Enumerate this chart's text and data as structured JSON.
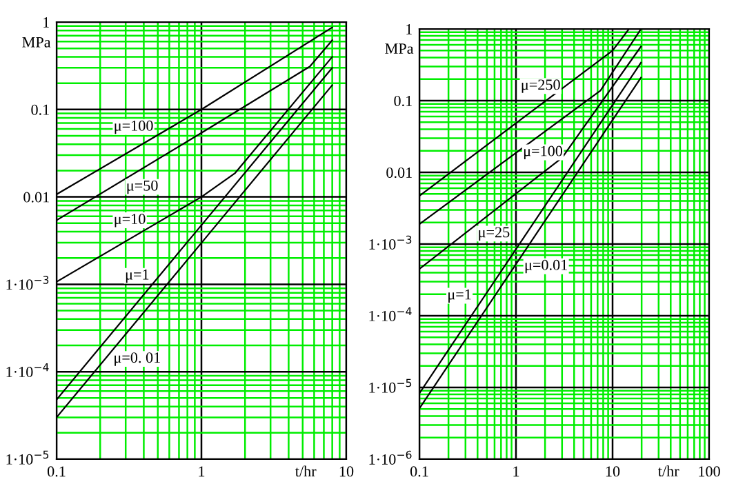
{
  "chart_data": [
    {
      "type": "line",
      "ylabel": "MPa",
      "xlabel": "t/hr",
      "log": "xy",
      "grid": true,
      "xlim": [
        0.1,
        10
      ],
      "ylim": [
        1e-05,
        1
      ],
      "xticks": [
        0.1,
        {
          "value": 0.2,
          "label": null
        },
        {
          "value": 0.3,
          "label": null
        },
        {
          "value": 0.4,
          "label": null
        },
        {
          "value": 0.5,
          "label": null
        },
        {
          "value": 0.6,
          "label": null
        },
        {
          "value": 0.7,
          "label": null
        },
        {
          "value": 0.8,
          "label": null
        },
        {
          "value": 0.9,
          "label": null
        },
        1,
        {
          "value": 2,
          "label": null
        },
        {
          "value": 3,
          "label": null
        },
        {
          "value": 4,
          "label": null
        },
        {
          "value": 5,
          "label": null
        },
        {
          "value": 6,
          "label": null
        },
        {
          "value": 7,
          "label": null
        },
        {
          "value": 8,
          "label": null
        },
        {
          "value": 9,
          "label": null
        },
        10
      ],
      "yticks": [
        {
          "value": 1e-05,
          "label": "1·10$^{−5}$"
        },
        {
          "value": 2e-05,
          "label": null
        },
        {
          "value": 3e-05,
          "label": null
        },
        {
          "value": 4e-05,
          "label": null
        },
        {
          "value": 5e-05,
          "label": null
        },
        {
          "value": 6e-05,
          "label": null
        },
        {
          "value": 7e-05,
          "label": null
        },
        {
          "value": 8e-05,
          "label": null
        },
        {
          "value": 9e-05,
          "label": null
        },
        {
          "value": 0.0001,
          "label": "1·10$^{−4}$"
        },
        {
          "value": 0.0002,
          "label": null
        },
        {
          "value": 0.0003,
          "label": null
        },
        {
          "value": 0.0004,
          "label": null
        },
        {
          "value": 0.0005,
          "label": null
        },
        {
          "value": 0.0006,
          "label": null
        },
        {
          "value": 0.0007,
          "label": null
        },
        {
          "value": 0.0008,
          "label": null
        },
        {
          "value": 0.0009,
          "label": null
        },
        {
          "value": 0.001,
          "label": "1·10$^{−3}$"
        },
        {
          "value": 0.002,
          "label": null
        },
        {
          "value": 0.003,
          "label": null
        },
        {
          "value": 0.004,
          "label": null
        },
        {
          "value": 0.005,
          "label": null
        },
        {
          "value": 0.006,
          "label": null
        },
        {
          "value": 0.007,
          "label": null
        },
        {
          "value": 0.008,
          "label": null
        },
        {
          "value": 0.009,
          "label": null
        },
        {
          "value": 0.01,
          "label": "0.01"
        },
        {
          "value": 0.02,
          "label": null
        },
        {
          "value": 0.03,
          "label": null
        },
        {
          "value": 0.04,
          "label": null
        },
        {
          "value": 0.05,
          "label": null
        },
        {
          "value": 0.06,
          "label": null
        },
        {
          "value": 0.07,
          "label": null
        },
        {
          "value": 0.08,
          "label": null
        },
        {
          "value": 0.09,
          "label": null
        },
        {
          "value": 0.1,
          "label": "0.1"
        },
        {
          "value": 0.2,
          "label": null
        },
        {
          "value": 0.3,
          "label": null
        },
        {
          "value": 0.4,
          "label": null
        },
        {
          "value": 0.5,
          "label": null
        },
        {
          "value": 0.6,
          "label": null
        },
        {
          "value": 0.7,
          "label": null
        },
        {
          "value": 0.8,
          "label": null
        },
        {
          "value": 0.9,
          "label": null
        },
        {
          "value": 1,
          "label": "1"
        }
      ],
      "series": [
        {
          "color": "#000000",
          "x": [
            0.1,
            1,
            8
          ],
          "values": [
            0.0107,
            0.1,
            0.87
          ]
        },
        {
          "color": "#000000",
          "x": [
            0.1,
            1,
            5.6,
            8
          ],
          "values": [
            0.0054,
            0.054,
            0.31,
            0.62
          ]
        },
        {
          "color": "#000000",
          "x": [
            0.1,
            1,
            1.7,
            8
          ],
          "values": [
            0.00107,
            0.01,
            0.0186,
            0.4
          ]
        },
        {
          "color": "#000000",
          "x": [
            0.1,
            0.87,
            8
          ],
          "values": [
            4.8e-05,
            0.0036,
            0.3
          ]
        },
        {
          "color": "#000000",
          "x": [
            0.1,
            1.1,
            8
          ],
          "values": [
            3e-05,
            0.0036,
            0.19
          ]
        }
      ],
      "annotations": [
        {
          "text": "μ=100",
          "x": 0.34,
          "y": 0.063
        },
        {
          "text": "μ=50",
          "x": 0.39,
          "y": 0.013
        },
        {
          "text": "μ=10",
          "x": 0.32,
          "y": 0.0054
        },
        {
          "text": "μ=1",
          "x": 0.36,
          "y": 0.00125
        },
        {
          "text": "μ=0. 01",
          "x": 0.36,
          "y": 0.00014
        }
      ]
    },
    {
      "type": "line",
      "ylabel": "MPa",
      "xlabel": "t/hr",
      "log": "xy",
      "grid": true,
      "xlim": [
        0.1,
        100
      ],
      "ylim": [
        1e-06,
        1
      ],
      "xticks": [
        0.1,
        {
          "value": 0.2,
          "label": null
        },
        {
          "value": 0.3,
          "label": null
        },
        {
          "value": 0.4,
          "label": null
        },
        {
          "value": 0.5,
          "label": null
        },
        {
          "value": 0.6,
          "label": null
        },
        {
          "value": 0.7,
          "label": null
        },
        {
          "value": 0.8,
          "label": null
        },
        {
          "value": 0.9,
          "label": null
        },
        1,
        {
          "value": 2,
          "label": null
        },
        {
          "value": 3,
          "label": null
        },
        {
          "value": 4,
          "label": null
        },
        {
          "value": 5,
          "label": null
        },
        {
          "value": 6,
          "label": null
        },
        {
          "value": 7,
          "label": null
        },
        {
          "value": 8,
          "label": null
        },
        {
          "value": 9,
          "label": null
        },
        10,
        {
          "value": 20,
          "label": null
        },
        {
          "value": 30,
          "label": null
        },
        {
          "value": 40,
          "label": null
        },
        {
          "value": 50,
          "label": null
        },
        {
          "value": 60,
          "label": null
        },
        {
          "value": 70,
          "label": null
        },
        {
          "value": 80,
          "label": null
        },
        {
          "value": 90,
          "label": null
        },
        100
      ],
      "yticks": [
        {
          "value": 1e-06,
          "label": "1·10$^{−6}$"
        },
        {
          "value": 2e-06,
          "label": null
        },
        {
          "value": 3e-06,
          "label": null
        },
        {
          "value": 4e-06,
          "label": null
        },
        {
          "value": 5e-06,
          "label": null
        },
        {
          "value": 6e-06,
          "label": null
        },
        {
          "value": 7e-06,
          "label": null
        },
        {
          "value": 8e-06,
          "label": null
        },
        {
          "value": 9e-06,
          "label": null
        },
        {
          "value": 1e-05,
          "label": "1·10$^{−5}$"
        },
        {
          "value": 2e-05,
          "label": null
        },
        {
          "value": 3e-05,
          "label": null
        },
        {
          "value": 4e-05,
          "label": null
        },
        {
          "value": 5e-05,
          "label": null
        },
        {
          "value": 6e-05,
          "label": null
        },
        {
          "value": 7e-05,
          "label": null
        },
        {
          "value": 8e-05,
          "label": null
        },
        {
          "value": 9e-05,
          "label": null
        },
        {
          "value": 0.0001,
          "label": "1·10$^{−4}$"
        },
        {
          "value": 0.0002,
          "label": null
        },
        {
          "value": 0.0003,
          "label": null
        },
        {
          "value": 0.0004,
          "label": null
        },
        {
          "value": 0.0005,
          "label": null
        },
        {
          "value": 0.0006,
          "label": null
        },
        {
          "value": 0.0007,
          "label": null
        },
        {
          "value": 0.0008,
          "label": null
        },
        {
          "value": 0.0009,
          "label": null
        },
        {
          "value": 0.001,
          "label": "1·10$^{−3}$"
        },
        {
          "value": 0.002,
          "label": null
        },
        {
          "value": 0.003,
          "label": null
        },
        {
          "value": 0.004,
          "label": null
        },
        {
          "value": 0.005,
          "label": null
        },
        {
          "value": 0.006,
          "label": null
        },
        {
          "value": 0.007,
          "label": null
        },
        {
          "value": 0.008,
          "label": null
        },
        {
          "value": 0.009,
          "label": null
        },
        {
          "value": 0.01,
          "label": "0.01"
        },
        {
          "value": 0.02,
          "label": null
        },
        {
          "value": 0.03,
          "label": null
        },
        {
          "value": 0.04,
          "label": null
        },
        {
          "value": 0.05,
          "label": null
        },
        {
          "value": 0.06,
          "label": null
        },
        {
          "value": 0.07,
          "label": null
        },
        {
          "value": 0.08,
          "label": null
        },
        {
          "value": 0.09,
          "label": null
        },
        {
          "value": 0.1,
          "label": "0.1"
        },
        {
          "value": 0.2,
          "label": null
        },
        {
          "value": 0.3,
          "label": null
        },
        {
          "value": 0.4,
          "label": null
        },
        {
          "value": 0.5,
          "label": null
        },
        {
          "value": 0.6,
          "label": null
        },
        {
          "value": 0.7,
          "label": null
        },
        {
          "value": 0.8,
          "label": null
        },
        {
          "value": 0.9,
          "label": null
        },
        {
          "value": 1,
          "label": "1"
        }
      ],
      "series": [
        {
          "color": "#000000",
          "x": [
            0.1,
            10,
            14.8
          ],
          "values": [
            0.0047,
            0.5,
            1
          ]
        },
        {
          "color": "#000000",
          "x": [
            0.1,
            7.5,
            19.7
          ],
          "values": [
            0.0019,
            0.138,
            1
          ]
        },
        {
          "color": "#000000",
          "x": [
            0.1,
            3,
            19.7
          ],
          "values": [
            0.00045,
            0.016,
            0.57
          ]
        },
        {
          "color": "#000000",
          "x": [
            0.1,
            19.7
          ],
          "values": [
            8.3e-06,
            0.34
          ]
        },
        {
          "color": "#000000",
          "x": [
            0.1,
            19.7
          ],
          "values": [
            5.1e-06,
            0.21
          ]
        }
      ],
      "annotations": [
        {
          "text": "μ=250",
          "x": 1.8,
          "y": 0.16
        },
        {
          "text": "μ=100",
          "x": 1.9,
          "y": 0.019
        },
        {
          "text": "μ=25",
          "x": 0.59,
          "y": 0.0014
        },
        {
          "text": "μ=1",
          "x": 0.26,
          "y": 0.00019
        },
        {
          "text": "μ=0.01",
          "x": 2.05,
          "y": 0.00049
        }
      ]
    }
  ]
}
